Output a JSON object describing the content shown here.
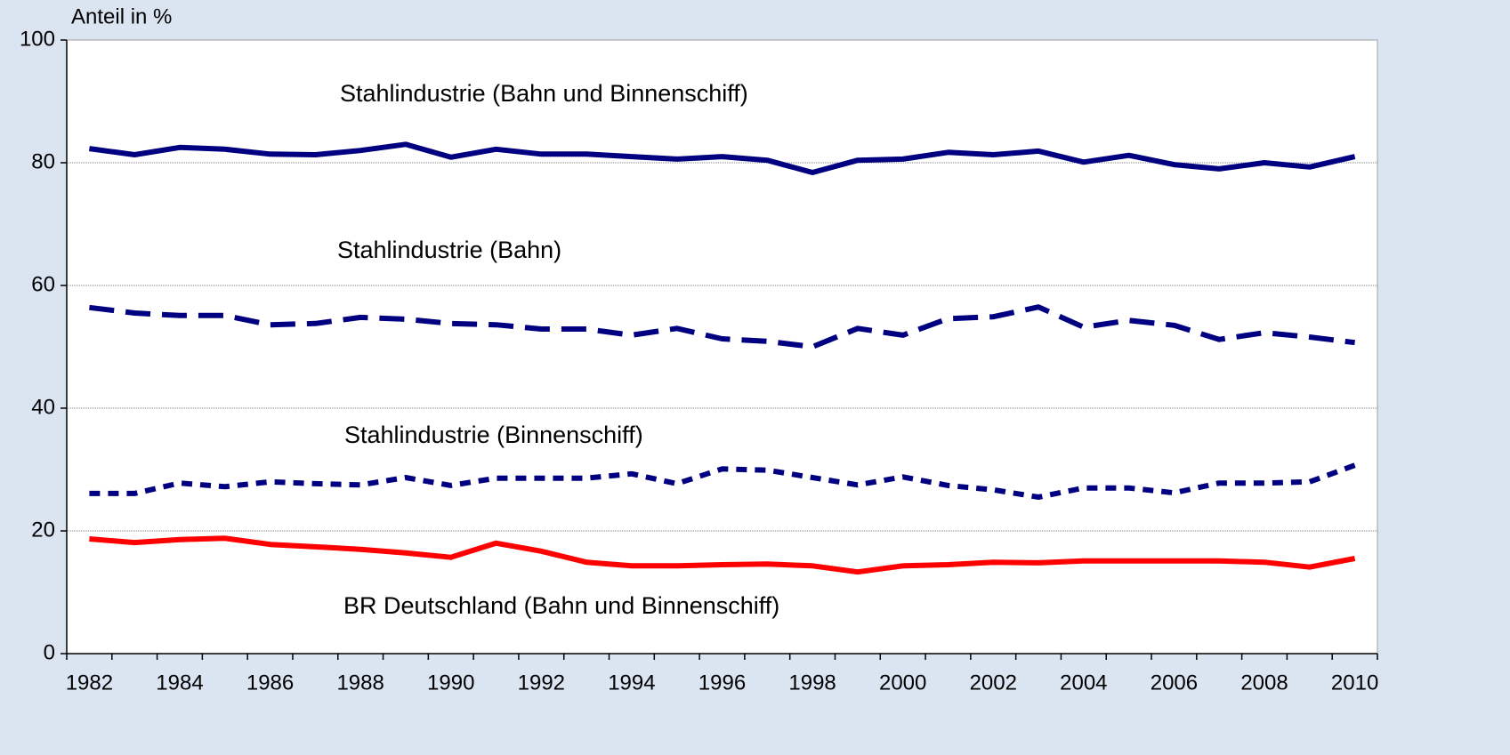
{
  "chart_data": {
    "type": "line",
    "y_axis_label": "Anteil in %",
    "categories": [
      "1982",
      null,
      "1984",
      null,
      "1986",
      null,
      "1988",
      null,
      "1990",
      null,
      "1992",
      null,
      "1994",
      null,
      "1996",
      null,
      "1998",
      null,
      "2000",
      null,
      "2002",
      null,
      "2004",
      null,
      "2006",
      null,
      "2008",
      null,
      "2010"
    ],
    "series": [
      {
        "name": "Stahlindustrie (Bahn und Binnenschiff)",
        "color": "#000080",
        "dash": "solid",
        "values": [
          82.3,
          81.3,
          82.5,
          82.2,
          81.4,
          81.3,
          82.0,
          83.0,
          80.9,
          82.2,
          81.4,
          81.4,
          81.0,
          80.6,
          81.0,
          80.4,
          78.4,
          80.4,
          80.6,
          81.7,
          81.3,
          81.9,
          80.1,
          81.2,
          79.7,
          79.0,
          80.0,
          79.3,
          81.0
        ]
      },
      {
        "name": "Stahlindustrie (Bahn)",
        "color": "#000080",
        "dash": "dashed",
        "values": [
          56.4,
          55.5,
          55.1,
          55.1,
          53.6,
          53.8,
          54.8,
          54.5,
          53.8,
          53.6,
          52.9,
          52.9,
          51.9,
          53.0,
          51.3,
          50.9,
          50.0,
          53.0,
          51.9,
          54.6,
          54.9,
          56.5,
          53.2,
          54.3,
          53.5,
          51.2,
          52.3,
          51.6,
          50.7
        ]
      },
      {
        "name": "Stahlindustrie (Binnenschiff)",
        "color": "#000080",
        "dash": "dotted",
        "values": [
          26.1,
          26.1,
          27.8,
          27.2,
          28.0,
          27.7,
          27.5,
          28.7,
          27.4,
          28.6,
          28.6,
          28.6,
          29.3,
          27.7,
          30.1,
          29.9,
          28.7,
          27.5,
          28.8,
          27.4,
          26.7,
          25.5,
          27.0,
          27.0,
          26.2,
          27.8,
          27.8,
          28.0,
          30.7
        ]
      },
      {
        "name": "BR Deutschland (Bahn und Binnenschiff)",
        "color": "#ff0000",
        "dash": "solid",
        "values": [
          18.7,
          18.1,
          18.6,
          18.8,
          17.8,
          17.4,
          17.0,
          16.4,
          15.7,
          18.0,
          16.7,
          14.9,
          14.3,
          14.3,
          14.5,
          14.6,
          14.3,
          13.3,
          14.3,
          14.5,
          14.9,
          14.8,
          15.1,
          15.1,
          15.1,
          15.1,
          14.9,
          14.1,
          15.5
        ]
      }
    ],
    "ylim": [
      0,
      100
    ],
    "yticks": [
      0,
      20,
      40,
      60,
      80,
      100
    ],
    "grid": true
  }
}
